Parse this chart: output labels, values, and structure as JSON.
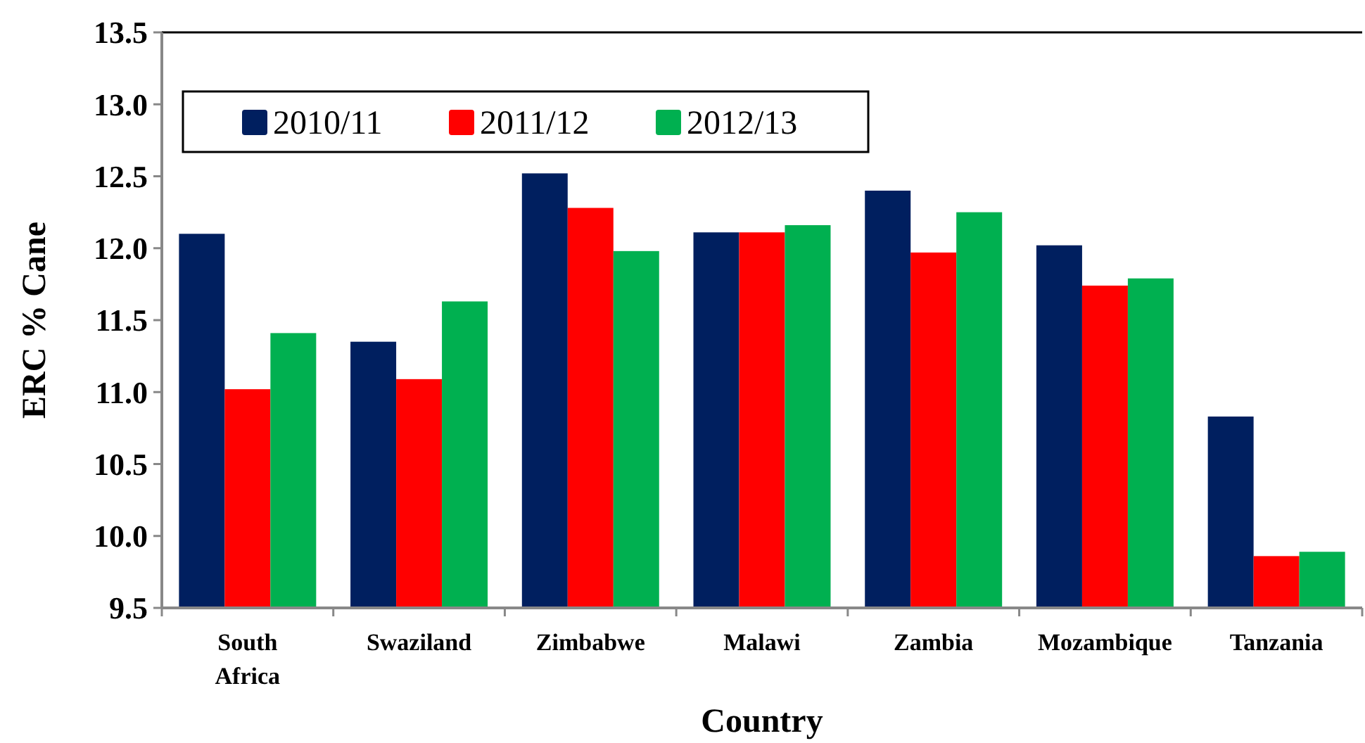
{
  "chart_data": {
    "type": "bar",
    "xlabel": "Country",
    "ylabel": "ERC % Cane",
    "categories": [
      "South Africa",
      "Swaziland",
      "Zimbabwe",
      "Malawi",
      "Zambia",
      "Mozambique",
      "Tanzania"
    ],
    "series": [
      {
        "name": "2010/11",
        "color": "#001f5f",
        "values": [
          12.1,
          11.35,
          12.52,
          12.11,
          12.4,
          12.02,
          10.83
        ]
      },
      {
        "name": "2011/12",
        "color": "#ff0000",
        "values": [
          11.02,
          11.09,
          12.28,
          12.11,
          11.97,
          11.74,
          9.86
        ]
      },
      {
        "name": "2012/13",
        "color": "#00b050",
        "values": [
          11.41,
          11.63,
          11.98,
          12.16,
          12.25,
          11.79,
          9.89
        ]
      }
    ],
    "ylim": [
      9.5,
      13.5
    ],
    "yticks": [
      {
        "value": 9.5,
        "label": "9.5"
      },
      {
        "value": 10,
        "label": "10.0"
      },
      {
        "value": 10.5,
        "label": "10.5"
      },
      {
        "value": 11,
        "label": "11.0"
      },
      {
        "value": 11.5,
        "label": "11.5"
      },
      {
        "value": 12,
        "label": "12.0"
      },
      {
        "value": 12.5,
        "label": "12.5"
      },
      {
        "value": 13,
        "label": "13.0"
      },
      {
        "value": 13.5,
        "label": "13.5"
      }
    ],
    "grid": false,
    "legend": "top left"
  }
}
